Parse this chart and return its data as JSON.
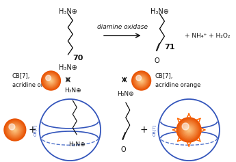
{
  "bg_color": "#ffffff",
  "orange_dark": "#E85000",
  "orange_mid": "#FF6600",
  "orange_light": "#FF9933",
  "orange_highlight": "#FFCC88",
  "blue_color": "#3355BB",
  "blue_dashed": "#5577CC",
  "black": "#111111",
  "enzyme_label": "diamine oxidase",
  "compound70": "70",
  "compound71": "71",
  "nh4_label": "+ NH₄⁺ + H₂O₂",
  "cb7_label_left": "CB[7],\nacridine orange",
  "cb7_label_right": "CB[7],\nacridine orange",
  "h3n_plus": "H₃N⊕",
  "h3n_circle": "H₃N⊙"
}
